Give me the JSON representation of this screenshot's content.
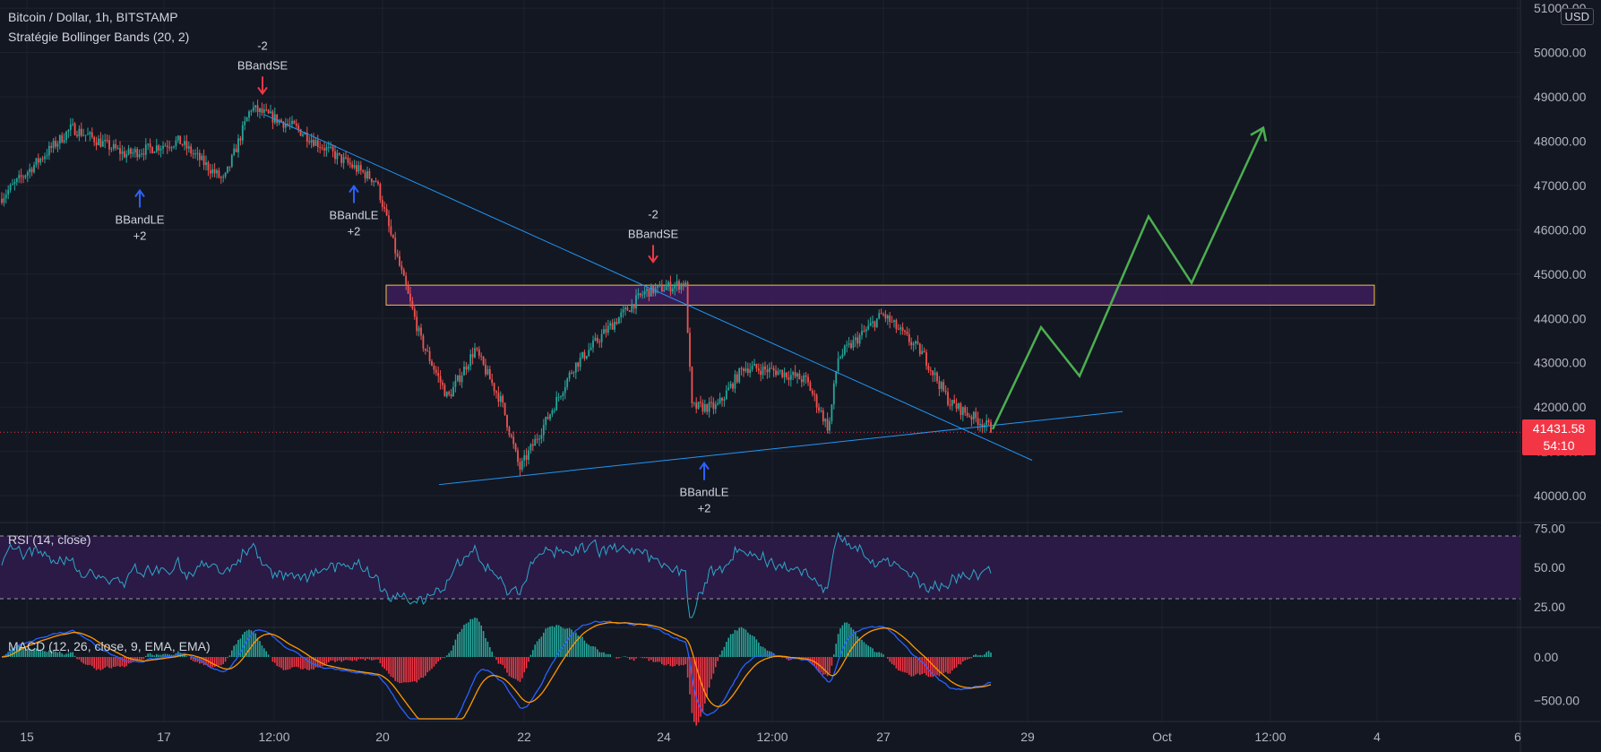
{
  "header": {
    "symbol_line": "Bitcoin / Dollar, 1h, BITSTAMP",
    "strategy_line": "Stratégie Bollinger Bands (20, 2)",
    "currency": "USD"
  },
  "last_price": {
    "value": "41431.58",
    "countdown": "54:10",
    "color": "#f23645"
  },
  "price_axis": {
    "labels": [
      "51000.00",
      "50000.00",
      "49000.00",
      "48000.00",
      "47000.00",
      "46000.00",
      "45000.00",
      "44000.00",
      "43000.00",
      "42000.00",
      "41000.00",
      "40000.00"
    ],
    "values": [
      51000,
      50000,
      49000,
      48000,
      47000,
      46000,
      45000,
      44000,
      43000,
      42000,
      41000,
      40000
    ]
  },
  "time_axis": {
    "labels": [
      "15",
      "17",
      "12:00",
      "20",
      "22",
      "24",
      "12:00",
      "27",
      "29",
      "Oct",
      "12:00",
      "4",
      "6"
    ]
  },
  "signals": [
    {
      "type": "short",
      "top": "-2",
      "bottom": "BBandSE",
      "color": "#f23645"
    },
    {
      "type": "long",
      "top": "BBandLE",
      "bottom": "+2",
      "color": "#2962ff"
    },
    {
      "type": "long",
      "top": "BBandLE",
      "bottom": "+2",
      "color": "#2962ff"
    },
    {
      "type": "short",
      "top": "-2",
      "bottom": "BBandSE",
      "color": "#f23645"
    },
    {
      "type": "long",
      "top": "BBandLE",
      "bottom": "+2",
      "color": "#2962ff"
    }
  ],
  "resistance_zone": {
    "low": 44300,
    "high": 44750,
    "fill": "#3c1d5a",
    "border": "#f0c040"
  },
  "projection": {
    "color": "#4caf50",
    "points": [
      41500,
      43800,
      42700,
      46300,
      44800,
      48300
    ]
  },
  "rsi": {
    "label": "RSI (14, close)",
    "axis_labels": [
      "75.00",
      "50.00",
      "25.00"
    ],
    "band": [
      30,
      70
    ],
    "line_color": "#2ea6c9",
    "band_fill": "#2a1a45"
  },
  "macd": {
    "label": "MACD (12, 26, close, 9, EMA, EMA)",
    "axis_labels": [
      "0.00",
      "−500.00"
    ],
    "macd_color": "#2962ff",
    "signal_color": "#ff9800",
    "hist_up": "#26a69a",
    "hist_down": "#f23645"
  },
  "colors": {
    "bg": "#131722",
    "grid": "#1e222d",
    "up": "#26a69a",
    "down": "#ef5350",
    "trend": "#2196f3"
  }
}
